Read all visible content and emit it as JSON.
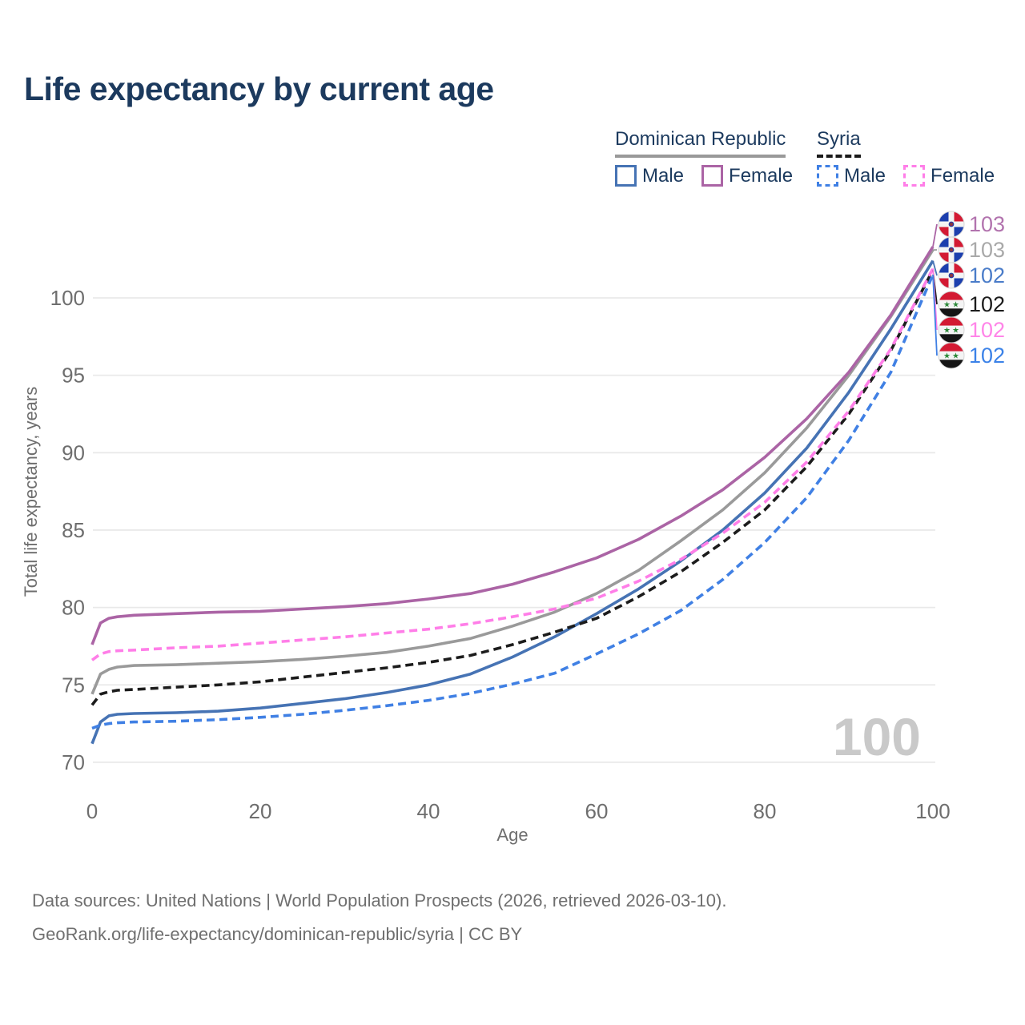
{
  "title": "Life expectancy by current age",
  "watermark": "100",
  "colors": {
    "title_text": "#1c3a5e",
    "axis_text": "#6e6e6e",
    "grid": "#e9e9e9",
    "footer_text": "#6f6f6f",
    "watermark": "#c9c9c9",
    "dr_group_underline": "#999999",
    "syria_group_underline": "#1a1a1a"
  },
  "legend": {
    "groups": [
      {
        "id": "dr",
        "label": "Dominican Republic",
        "underline_style": "solid",
        "items": [
          {
            "label": "Male",
            "color": "#4673b4",
            "dashed": false
          },
          {
            "label": "Female",
            "color": "#ab64a5",
            "dashed": false
          }
        ]
      },
      {
        "id": "sy",
        "label": "Syria",
        "underline_style": "dashed",
        "items": [
          {
            "label": "Male",
            "color": "#4080e4",
            "dashed": true
          },
          {
            "label": "Female",
            "color": "#ff7ee8",
            "dashed": true
          }
        ]
      }
    ]
  },
  "chart_data": {
    "type": "line",
    "title": "Life expectancy by current age",
    "xlabel": "Age",
    "ylabel": "Total life expectancy, years",
    "xlim": [
      0,
      100
    ],
    "ylim": [
      70,
      103.5
    ],
    "xticks": [
      0,
      20,
      40,
      60,
      80,
      100
    ],
    "yticks": [
      70,
      75,
      80,
      85,
      90,
      95,
      100
    ],
    "grid": "horizontal",
    "legend_position": "top-right",
    "x": [
      0,
      1,
      2,
      3,
      5,
      10,
      15,
      20,
      25,
      30,
      35,
      40,
      45,
      50,
      55,
      60,
      65,
      70,
      75,
      80,
      85,
      90,
      95,
      100
    ],
    "series": [
      {
        "id": "dr-female",
        "name": "Dominican Republic Female",
        "country": "do",
        "sex": "Female",
        "color": "#ab64a5",
        "label_color": "#b273ae",
        "dashed": false,
        "end_label": "103",
        "values": [
          77.6,
          79.0,
          79.3,
          79.4,
          79.5,
          79.6,
          79.7,
          79.75,
          79.9,
          80.05,
          80.25,
          80.55,
          80.9,
          81.5,
          82.3,
          83.2,
          84.4,
          85.9,
          87.6,
          89.7,
          92.2,
          95.2,
          98.9,
          103.3
        ]
      },
      {
        "id": "dr-total",
        "name": "Dominican Republic Both sexes",
        "country": "do",
        "sex": "Both",
        "color": "#9a9a9a",
        "label_color": "#a9a9a9",
        "dashed": false,
        "end_label": "103",
        "values": [
          74.4,
          75.7,
          76.0,
          76.15,
          76.25,
          76.3,
          76.4,
          76.5,
          76.65,
          76.85,
          77.1,
          77.5,
          78.0,
          78.8,
          79.7,
          80.9,
          82.4,
          84.3,
          86.3,
          88.7,
          91.6,
          95.0,
          98.8,
          103.1
        ]
      },
      {
        "id": "dr-male",
        "name": "Dominican Republic Male",
        "country": "do",
        "sex": "Male",
        "color": "#4673b4",
        "label_color": "#4a7cc9",
        "dashed": false,
        "end_label": "102",
        "values": [
          71.2,
          72.6,
          73.0,
          73.1,
          73.15,
          73.2,
          73.3,
          73.5,
          73.8,
          74.1,
          74.5,
          75.0,
          75.7,
          76.8,
          78.1,
          79.6,
          81.2,
          83.0,
          85.0,
          87.4,
          90.3,
          93.9,
          98.0,
          102.4
        ]
      },
      {
        "id": "syria-total",
        "name": "Syria Both sexes",
        "country": "sy",
        "sex": "Both",
        "color": "#1c1c1c",
        "label_color": "#1c1c1c",
        "dashed": true,
        "end_label": "102",
        "values": [
          73.7,
          74.4,
          74.55,
          74.65,
          74.7,
          74.85,
          75.0,
          75.2,
          75.5,
          75.8,
          76.1,
          76.45,
          76.9,
          77.6,
          78.4,
          79.3,
          80.7,
          82.3,
          84.2,
          86.3,
          89.1,
          92.5,
          96.6,
          101.8
        ]
      },
      {
        "id": "syria-female",
        "name": "Syria Female",
        "country": "sy",
        "sex": "Female",
        "color": "#ff7ee8",
        "label_color": "#ff85e8",
        "dashed": true,
        "end_label": "102",
        "values": [
          76.6,
          77.0,
          77.15,
          77.2,
          77.25,
          77.4,
          77.5,
          77.7,
          77.9,
          78.1,
          78.35,
          78.6,
          78.95,
          79.4,
          79.9,
          80.6,
          81.7,
          83.1,
          84.8,
          86.8,
          89.4,
          92.7,
          96.7,
          101.9
        ]
      },
      {
        "id": "syria-male",
        "name": "Syria Male",
        "country": "sy",
        "sex": "Male",
        "color": "#4080e4",
        "label_color": "#3b82e8",
        "dashed": true,
        "end_label": "102",
        "values": [
          72.2,
          72.4,
          72.5,
          72.55,
          72.6,
          72.65,
          72.75,
          72.9,
          73.1,
          73.35,
          73.65,
          74.0,
          74.45,
          75.05,
          75.75,
          77.0,
          78.3,
          79.8,
          81.8,
          84.2,
          87.1,
          90.8,
          95.2,
          101.5
        ]
      }
    ]
  },
  "footer": {
    "line1": "Data sources: United Nations | World Population Prospects (2026, retrieved 2026-03-10).",
    "line2": "GeoRank.org/life-expectancy/dominican-republic/syria | CC BY"
  }
}
